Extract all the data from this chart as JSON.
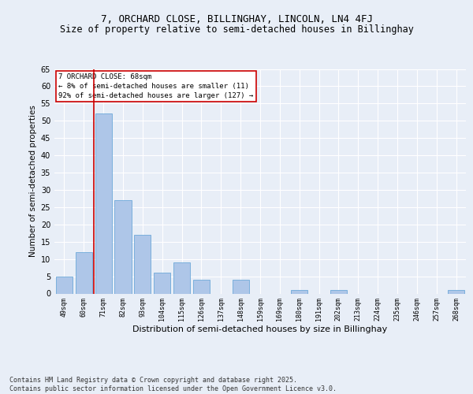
{
  "title1": "7, ORCHARD CLOSE, BILLINGHAY, LINCOLN, LN4 4FJ",
  "title2": "Size of property relative to semi-detached houses in Billinghay",
  "xlabel": "Distribution of semi-detached houses by size in Billinghay",
  "ylabel": "Number of semi-detached properties",
  "categories": [
    "49sqm",
    "60sqm",
    "71sqm",
    "82sqm",
    "93sqm",
    "104sqm",
    "115sqm",
    "126sqm",
    "137sqm",
    "148sqm",
    "159sqm",
    "169sqm",
    "180sqm",
    "191sqm",
    "202sqm",
    "213sqm",
    "224sqm",
    "235sqm",
    "246sqm",
    "257sqm",
    "268sqm"
  ],
  "values": [
    5,
    12,
    52,
    27,
    17,
    6,
    9,
    4,
    0,
    4,
    0,
    0,
    1,
    0,
    1,
    0,
    0,
    0,
    0,
    0,
    1
  ],
  "bar_color": "#aec6e8",
  "bar_edge_color": "#5a9fd4",
  "vline_x": 1.5,
  "vline_color": "#cc0000",
  "annotation_title": "7 ORCHARD CLOSE: 68sqm",
  "annotation_line1": "← 8% of semi-detached houses are smaller (11)",
  "annotation_line2": "92% of semi-detached houses are larger (127) →",
  "annotation_box_color": "#ffffff",
  "annotation_box_edge": "#cc0000",
  "ylim": [
    0,
    65
  ],
  "yticks": [
    0,
    5,
    10,
    15,
    20,
    25,
    30,
    35,
    40,
    45,
    50,
    55,
    60,
    65
  ],
  "background_color": "#e8eef7",
  "plot_bg_color": "#e8eef7",
  "footer_line1": "Contains HM Land Registry data © Crown copyright and database right 2025.",
  "footer_line2": "Contains public sector information licensed under the Open Government Licence v3.0.",
  "title1_fontsize": 9,
  "title2_fontsize": 8.5,
  "annotation_fontsize": 6.5,
  "footer_fontsize": 6,
  "ylabel_fontsize": 7.5,
  "xlabel_fontsize": 8,
  "ytick_fontsize": 7,
  "xtick_fontsize": 6
}
